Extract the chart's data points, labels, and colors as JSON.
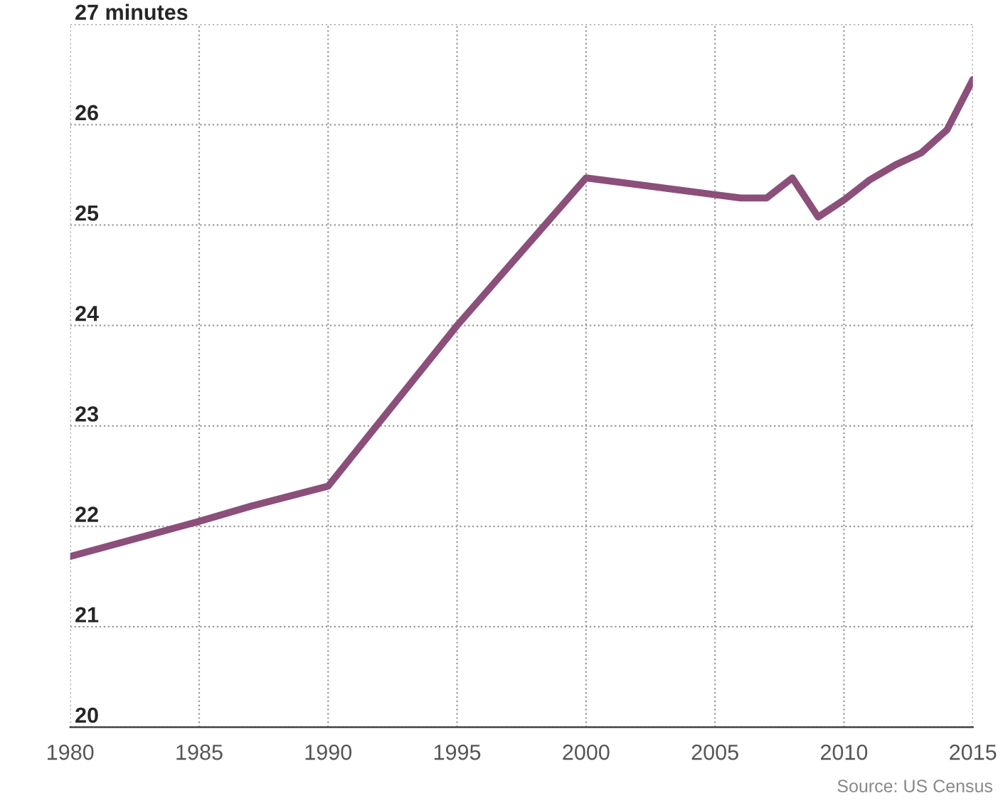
{
  "chart_data": {
    "type": "line",
    "x": [
      1980,
      1985,
      1987,
      1990,
      1995,
      2000,
      2006,
      2007,
      2008,
      2009,
      2010,
      2011,
      2012,
      2013,
      2014,
      2015
    ],
    "series": [
      {
        "color": "#8b4f7a",
        "values": [
          21.7,
          22.05,
          22.2,
          22.4,
          24.0,
          25.47,
          25.27,
          25.27,
          25.47,
          25.08,
          25.25,
          25.45,
          25.6,
          25.72,
          25.95,
          26.45
        ]
      }
    ],
    "xlim": [
      1980,
      2015
    ],
    "xticks": [
      1980,
      1985,
      1990,
      1995,
      2000,
      2005,
      2010,
      2015
    ],
    "ylim": [
      20,
      27
    ],
    "yticks": [
      20,
      21,
      22,
      23,
      24,
      25,
      26,
      {
        "value": 27,
        "label": "27 minutes"
      }
    ],
    "grid": true,
    "line_style": "solid",
    "marker": "none",
    "annotations": [
      "Source: US Census"
    ]
  }
}
